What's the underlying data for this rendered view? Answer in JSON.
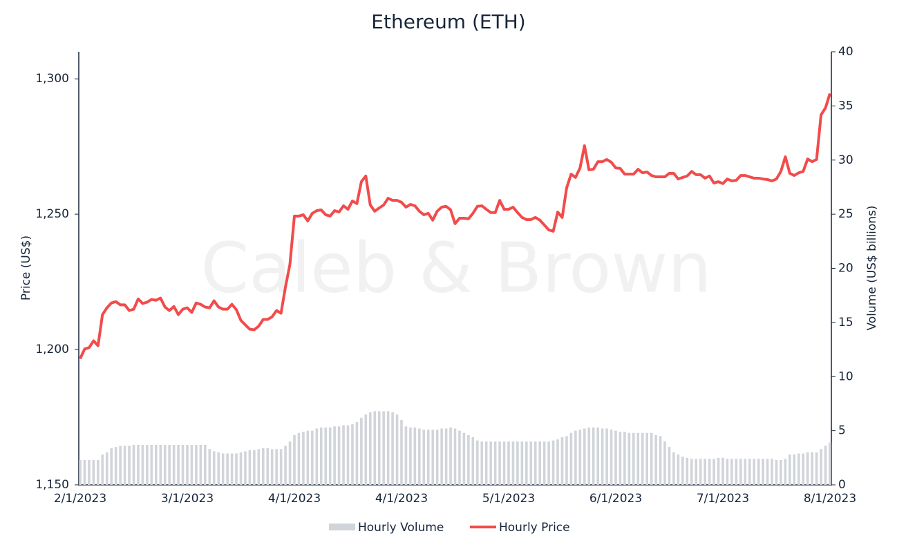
{
  "chart_data": {
    "type": "bar-line",
    "title": "Ethereum (ETH)",
    "watermark": "Caleb & Brown",
    "y_label": "Price (US$)",
    "y2_label": "Volume (US$ billions)",
    "categories": [
      "2/1/2023",
      null,
      null,
      null,
      null,
      null,
      null,
      null,
      null,
      null,
      null,
      null,
      null,
      null,
      null,
      null,
      null,
      null,
      null,
      null,
      null,
      null,
      null,
      null,
      "3/1/2023",
      null,
      null,
      null,
      null,
      null,
      null,
      null,
      null,
      null,
      null,
      null,
      null,
      null,
      null,
      null,
      null,
      null,
      null,
      null,
      null,
      null,
      null,
      null,
      "4/1/2023",
      null,
      null,
      null,
      null,
      null,
      null,
      null,
      null,
      null,
      null,
      null,
      null,
      null,
      null,
      null,
      null,
      null,
      null,
      null,
      null,
      null,
      null,
      null,
      "4/1/2023",
      null,
      null,
      null,
      null,
      null,
      null,
      null,
      null,
      null,
      null,
      null,
      null,
      null,
      null,
      null,
      null,
      null,
      null,
      null,
      null,
      null,
      null,
      null,
      "5/1/2023",
      null,
      null,
      null,
      null,
      null,
      null,
      null,
      null,
      null,
      null,
      null,
      null,
      null,
      null,
      null,
      null,
      null,
      null,
      null,
      null,
      null,
      null,
      null,
      "6/1/2023",
      null,
      null,
      null,
      null,
      null,
      null,
      null,
      null,
      null,
      null,
      null,
      null,
      null,
      null,
      null,
      null,
      null,
      null,
      null,
      null,
      null,
      null,
      null,
      "7/1/2023",
      null,
      null,
      null,
      null,
      null,
      null,
      null,
      null,
      null,
      null,
      null,
      null,
      null,
      null,
      null,
      null,
      null,
      null,
      null,
      null,
      null,
      null,
      null,
      "8/1/2023"
    ],
    "series": [
      {
        "name": "Hourly Volume",
        "type": "bar",
        "axis": "y2",
        "color": "#d1d4d9",
        "values": [
          2.3,
          2.3,
          2.3,
          2.3,
          2.3,
          2.8,
          3.0,
          3.4,
          3.5,
          3.6,
          3.6,
          3.6,
          3.7,
          3.7,
          3.7,
          3.7,
          3.7,
          3.7,
          3.7,
          3.7,
          3.7,
          3.7,
          3.7,
          3.7,
          3.7,
          3.7,
          3.7,
          3.7,
          3.7,
          3.3,
          3.1,
          3.0,
          2.9,
          2.9,
          2.9,
          2.9,
          3.0,
          3.1,
          3.2,
          3.2,
          3.3,
          3.4,
          3.4,
          3.3,
          3.3,
          3.3,
          3.6,
          4.0,
          4.6,
          4.8,
          4.9,
          5.0,
          5.0,
          5.2,
          5.3,
          5.3,
          5.3,
          5.4,
          5.4,
          5.5,
          5.5,
          5.6,
          5.8,
          6.2,
          6.5,
          6.7,
          6.8,
          6.8,
          6.8,
          6.8,
          6.7,
          6.5,
          6.0,
          5.4,
          5.3,
          5.3,
          5.2,
          5.1,
          5.1,
          5.1,
          5.1,
          5.2,
          5.2,
          5.3,
          5.2,
          5.0,
          4.8,
          4.6,
          4.4,
          4.1,
          4.0,
          4.0,
          4.0,
          4.0,
          4.0,
          4.0,
          4.0,
          4.0,
          4.0,
          4.0,
          4.0,
          4.0,
          4.0,
          4.0,
          4.0,
          4.0,
          4.1,
          4.2,
          4.4,
          4.5,
          4.8,
          5.0,
          5.1,
          5.2,
          5.3,
          5.3,
          5.3,
          5.2,
          5.2,
          5.1,
          5.0,
          4.9,
          4.9,
          4.8,
          4.8,
          4.8,
          4.8,
          4.8,
          4.8,
          4.6,
          4.5,
          4.0,
          3.5,
          3.0,
          2.8,
          2.6,
          2.5,
          2.4,
          2.4,
          2.4,
          2.4,
          2.4,
          2.4,
          2.5,
          2.5,
          2.4,
          2.4,
          2.4,
          2.4,
          2.4,
          2.4,
          2.4,
          2.4,
          2.4,
          2.4,
          2.4,
          2.3,
          2.3,
          2.4,
          2.8,
          2.8,
          2.9,
          2.9,
          3.0,
          3.0,
          3.0,
          3.3,
          3.6,
          3.9
        ]
      },
      {
        "name": "Hourly Price",
        "type": "line",
        "axis": "y",
        "color": "#f24b4b",
        "values": [
          1196.6,
          1200.2,
          1200.7,
          1203.2,
          1201.4,
          1212.9,
          1215.4,
          1217.2,
          1217.7,
          1216.5,
          1216.5,
          1214.4,
          1214.9,
          1218.7,
          1217.0,
          1217.5,
          1218.5,
          1218.2,
          1219.0,
          1215.7,
          1214.4,
          1215.9,
          1212.9,
          1214.9,
          1215.4,
          1213.7,
          1217.2,
          1216.7,
          1215.7,
          1215.4,
          1218.0,
          1215.7,
          1214.9,
          1214.9,
          1216.7,
          1214.7,
          1210.8,
          1209.1,
          1207.5,
          1207.3,
          1208.6,
          1211.1,
          1211.1,
          1212.1,
          1214.4,
          1213.4,
          1223.1,
          1231.5,
          1249.3,
          1249.3,
          1249.8,
          1247.5,
          1250.3,
          1251.3,
          1251.6,
          1249.8,
          1249.3,
          1251.3,
          1250.8,
          1253.1,
          1251.8,
          1254.9,
          1253.9,
          1262.0,
          1264.1,
          1253.4,
          1251.1,
          1252.3,
          1253.4,
          1255.9,
          1255.1,
          1255.1,
          1254.4,
          1252.6,
          1253.6,
          1253.1,
          1251.1,
          1249.8,
          1250.3,
          1247.8,
          1251.1,
          1252.6,
          1252.9,
          1251.6,
          1246.5,
          1248.5,
          1248.5,
          1248.3,
          1250.3,
          1252.9,
          1253.1,
          1251.8,
          1250.6,
          1250.6,
          1255.1,
          1251.8,
          1251.8,
          1252.6,
          1250.6,
          1248.8,
          1248.0,
          1248.0,
          1248.8,
          1247.8,
          1246.0,
          1244.2,
          1243.7,
          1250.8,
          1248.8,
          1259.7,
          1264.8,
          1263.6,
          1267.1,
          1275.3,
          1266.4,
          1266.6,
          1269.4,
          1269.4,
          1270.2,
          1269.2,
          1267.1,
          1266.9,
          1264.8,
          1264.8,
          1264.8,
          1266.6,
          1265.3,
          1265.6,
          1264.3,
          1263.8,
          1263.8,
          1263.8,
          1265.1,
          1265.1,
          1263.0,
          1263.6,
          1264.1,
          1265.8,
          1264.6,
          1264.6,
          1263.3,
          1264.1,
          1261.5,
          1262.0,
          1261.3,
          1263.0,
          1262.3,
          1262.5,
          1264.3,
          1264.3,
          1263.8,
          1263.3,
          1263.3,
          1263.0,
          1262.8,
          1262.3,
          1263.0,
          1265.8,
          1271.2,
          1265.1,
          1264.3,
          1265.3,
          1265.8,
          1270.4,
          1269.4,
          1270.2,
          1286.7,
          1289.3,
          1294.6
        ]
      }
    ],
    "ylim": [
      1150,
      1310
    ],
    "yticks": [
      {
        "value": 1150,
        "label": "1,150"
      },
      {
        "value": 1200,
        "label": "1,200"
      },
      {
        "value": 1250,
        "label": "1,250"
      },
      {
        "value": 1300,
        "label": "1,300"
      }
    ],
    "y2lim": [
      0,
      40
    ],
    "y2ticks": [
      0,
      5,
      10,
      15,
      20,
      25,
      30,
      35,
      40
    ],
    "legend": "bottom",
    "grid": false
  }
}
